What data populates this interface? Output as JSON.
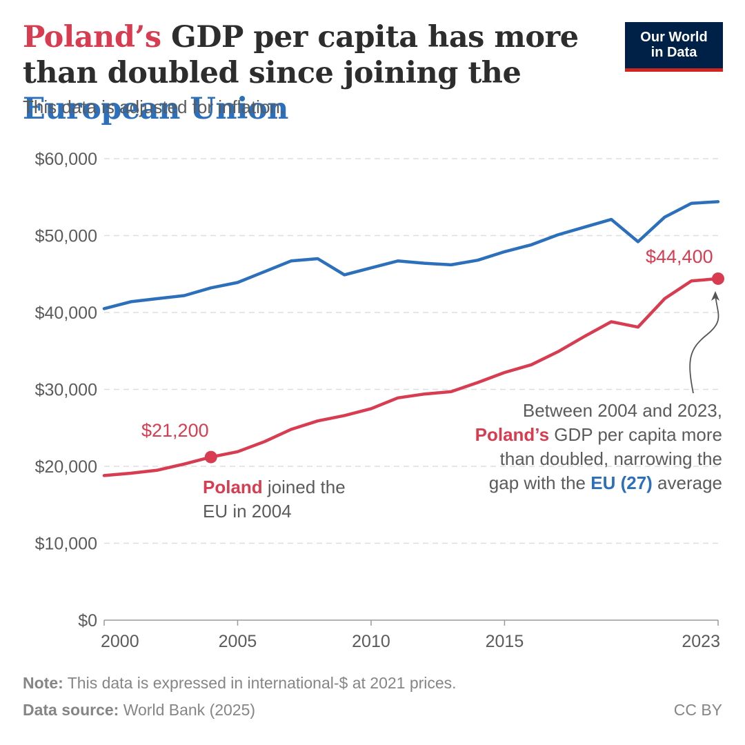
{
  "header": {
    "title_part1": "Poland’s",
    "title_part2": " GDP per capita has more than doubled since joining the ",
    "title_part3": "European Union",
    "subtitle": "This data is adjusted for inflation.",
    "logo_line1": "Our World",
    "logo_line2": "in Data"
  },
  "colors": {
    "poland": "#d73c50",
    "eu": "#2c6fbb",
    "grid": "#dddddd",
    "axis": "#999999",
    "logo_bg": "#002147",
    "logo_accent": "#ce261e"
  },
  "annotations": {
    "poland_2004_value": "$21,200",
    "poland_2023_value": "$44,400",
    "joined_bold": "Poland",
    "joined_rest1": " joined the",
    "joined_rest2": "EU in 2004",
    "gap_line1": "Between 2004 and 2023,",
    "gap_bold_poland": "Poland’s",
    "gap_line2_rest": " GDP per capita more",
    "gap_line3": "than doubled, narrowing the",
    "gap_line4_pre": "gap with the ",
    "gap_bold_eu": "EU (27)",
    "gap_line4_post": " average"
  },
  "footer": {
    "note_label": "Note:",
    "note_text": " This data is expressed in international-$ at 2021 prices.",
    "source_label": "Data source:",
    "source_text": " World Bank (2025)",
    "license": "CC BY"
  },
  "chart_data": {
    "type": "line",
    "title": "Poland’s GDP per capita has more than doubled since joining the European Union",
    "subtitle": "This data is adjusted for inflation.",
    "xlabel": "",
    "ylabel": "",
    "x": [
      2000,
      2001,
      2002,
      2003,
      2004,
      2005,
      2006,
      2007,
      2008,
      2009,
      2010,
      2011,
      2012,
      2013,
      2014,
      2015,
      2016,
      2017,
      2018,
      2019,
      2020,
      2021,
      2022,
      2023
    ],
    "xticks": [
      2000,
      2005,
      2010,
      2015,
      2023
    ],
    "xtick_labels": [
      "2000",
      "2005",
      "2010",
      "2015",
      "2023"
    ],
    "xlim": [
      2000,
      2023
    ],
    "ylim": [
      0,
      60000
    ],
    "yticks": [
      0,
      10000,
      20000,
      30000,
      40000,
      50000,
      60000
    ],
    "ytick_labels": [
      "$0",
      "$10,000",
      "$20,000",
      "$30,000",
      "$40,000",
      "$50,000",
      "$60,000"
    ],
    "grid": true,
    "legend": "none (inline annotations)",
    "series": [
      {
        "name": "European Union (27)",
        "color": "#2c6fbb",
        "values": [
          40500,
          41400,
          41800,
          42200,
          43200,
          43900,
          45300,
          46700,
          47000,
          44900,
          45800,
          46700,
          46400,
          46200,
          46800,
          47900,
          48800,
          50100,
          51100,
          52100,
          49200,
          52400,
          54200,
          54400
        ]
      },
      {
        "name": "Poland",
        "color": "#d73c50",
        "values": [
          18800,
          19100,
          19500,
          20300,
          21200,
          21900,
          23200,
          24800,
          25900,
          26600,
          27500,
          28900,
          29400,
          29700,
          30900,
          32200,
          33200,
          34900,
          36900,
          38800,
          38100,
          41800,
          44100,
          44400
        ],
        "highlighted_points": [
          {
            "x": 2004,
            "y": 21200,
            "label": "$21,200"
          },
          {
            "x": 2023,
            "y": 44400,
            "label": "$44,400"
          }
        ]
      }
    ]
  }
}
